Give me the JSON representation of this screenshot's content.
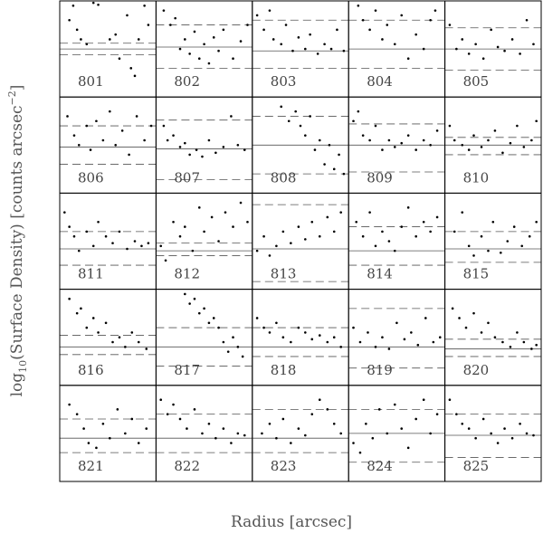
{
  "figure": {
    "xlabel": "Radius [arcsec]",
    "ylabel": [
      "log",
      "10",
      "(Surface Density) [counts arcsec",
      "−2",
      "]"
    ]
  },
  "chart_data": [
    {
      "type": "scatter",
      "title": "801",
      "x": [
        10,
        14,
        18,
        22,
        28,
        35,
        40,
        52,
        58,
        62,
        70,
        74,
        78,
        82,
        88,
        92
      ],
      "y": [
        80,
        95,
        70,
        60,
        55,
        98,
        96,
        60,
        65,
        40,
        85,
        30,
        22,
        60,
        95,
        75
      ],
      "xlim": [
        0,
        100
      ],
      "ylim": [
        0,
        100
      ],
      "median": 50,
      "bounds": [
        44,
        56
      ]
    },
    {
      "type": "scatter",
      "title": "802",
      "x": [
        8,
        15,
        20,
        25,
        30,
        35,
        40,
        45,
        50,
        55,
        60,
        65,
        70,
        80,
        88,
        95
      ],
      "y": [
        90,
        75,
        82,
        50,
        60,
        45,
        68,
        40,
        55,
        35,
        62,
        48,
        70,
        40,
        58,
        75
      ],
      "xlim": [
        0,
        100
      ],
      "ylim": [
        0,
        100
      ],
      "median": 52,
      "bounds": [
        30,
        75
      ]
    },
    {
      "type": "scatter",
      "title": "803",
      "x": [
        5,
        12,
        18,
        22,
        30,
        35,
        42,
        48,
        55,
        60,
        68,
        75,
        82,
        88,
        95
      ],
      "y": [
        85,
        70,
        90,
        60,
        55,
        75,
        48,
        62,
        50,
        65,
        45,
        55,
        50,
        70,
        48
      ],
      "xlim": [
        0,
        100
      ],
      "ylim": [
        0,
        100
      ],
      "median": 48,
      "bounds": [
        30,
        80
      ]
    },
    {
      "type": "scatter",
      "title": "804",
      "x": [
        10,
        15,
        22,
        28,
        35,
        40,
        48,
        55,
        62,
        70,
        78,
        85,
        90
      ],
      "y": [
        95,
        80,
        70,
        90,
        60,
        75,
        55,
        85,
        40,
        65,
        50,
        80,
        90
      ],
      "xlim": [
        0,
        100
      ],
      "ylim": [
        0,
        100
      ],
      "median": 50,
      "bounds": [
        30,
        80
      ]
    },
    {
      "type": "scatter",
      "title": "805",
      "x": [
        5,
        12,
        18,
        25,
        32,
        40,
        48,
        55,
        62,
        70,
        78,
        85,
        92
      ],
      "y": [
        75,
        50,
        60,
        45,
        55,
        40,
        70,
        52,
        48,
        60,
        45,
        80,
        55
      ],
      "xlim": [
        0,
        100
      ],
      "ylim": [
        0,
        100
      ],
      "median": 50,
      "bounds": [
        28,
        72
      ]
    },
    {
      "type": "scatter",
      "title": "806",
      "x": [
        8,
        15,
        20,
        28,
        32,
        38,
        45,
        52,
        58,
        65,
        72,
        80,
        88,
        95
      ],
      "y": [
        80,
        60,
        50,
        70,
        45,
        75,
        55,
        85,
        50,
        65,
        40,
        80,
        55,
        70
      ],
      "xlim": [
        0,
        100
      ],
      "ylim": [
        0,
        100
      ],
      "median": 48,
      "bounds": [
        30,
        70
      ]
    },
    {
      "type": "scatter",
      "title": "807",
      "x": [
        8,
        12,
        18,
        25,
        30,
        35,
        42,
        48,
        55,
        62,
        70,
        78,
        85,
        92
      ],
      "y": [
        70,
        55,
        60,
        48,
        52,
        40,
        45,
        38,
        55,
        42,
        48,
        80,
        50,
        45
      ],
      "xlim": [
        0,
        100
      ],
      "ylim": [
        0,
        100
      ],
      "median": 46,
      "bounds": [
        14,
        76
      ]
    },
    {
      "type": "scatter",
      "title": "808",
      "x": [
        30,
        38,
        45,
        50,
        55,
        60,
        65,
        70,
        75,
        80,
        85,
        90,
        95
      ],
      "y": [
        90,
        75,
        85,
        70,
        60,
        80,
        45,
        55,
        30,
        50,
        25,
        40,
        20
      ],
      "xlim": [
        0,
        100
      ],
      "ylim": [
        0,
        100
      ],
      "median": 50,
      "bounds": [
        20,
        80
      ]
    },
    {
      "type": "scatter",
      "title": "809",
      "x": [
        5,
        10,
        15,
        22,
        28,
        35,
        42,
        48,
        55,
        62,
        70,
        78,
        85,
        92
      ],
      "y": [
        75,
        85,
        60,
        55,
        70,
        45,
        55,
        48,
        52,
        60,
        45,
        55,
        50,
        65
      ],
      "xlim": [
        0,
        100
      ],
      "ylim": [
        0,
        100
      ],
      "median": 50,
      "bounds": [
        22,
        72
      ]
    },
    {
      "type": "scatter",
      "title": "810",
      "x": [
        5,
        10,
        18,
        25,
        30,
        38,
        45,
        52,
        60,
        68,
        75,
        82,
        90,
        95
      ],
      "y": [
        70,
        55,
        50,
        45,
        60,
        48,
        55,
        65,
        42,
        52,
        70,
        48,
        55,
        75
      ],
      "xlim": [
        0,
        100
      ],
      "ylim": [
        0,
        100
      ],
      "median": 50,
      "bounds": [
        40,
        58
      ]
    },
    {
      "type": "scatter",
      "title": "811",
      "x": [
        5,
        10,
        15,
        20,
        28,
        35,
        40,
        48,
        55,
        62,
        70,
        78,
        85,
        92
      ],
      "y": [
        80,
        65,
        55,
        40,
        60,
        45,
        70,
        55,
        48,
        60,
        42,
        50,
        45,
        48
      ],
      "xlim": [
        0,
        100
      ],
      "ylim": [
        0,
        100
      ],
      "median": 42,
      "bounds": [
        25,
        60
      ]
    },
    {
      "type": "scatter",
      "title": "812",
      "x": [
        5,
        10,
        18,
        25,
        30,
        38,
        45,
        50,
        58,
        65,
        72,
        80,
        88,
        95
      ],
      "y": [
        45,
        30,
        70,
        55,
        65,
        40,
        85,
        60,
        75,
        50,
        80,
        65,
        90,
        70
      ],
      "xlim": [
        0,
        100
      ],
      "ylim": [
        0,
        100
      ],
      "median": 40,
      "bounds": [
        35,
        48
      ]
    },
    {
      "type": "scatter",
      "title": "813",
      "x": [
        5,
        12,
        18,
        25,
        32,
        40,
        48,
        55,
        62,
        70,
        78,
        85,
        92
      ],
      "y": [
        40,
        55,
        35,
        45,
        60,
        48,
        65,
        52,
        70,
        55,
        75,
        60,
        80
      ],
      "xlim": [
        0,
        100
      ],
      "ylim": [
        0,
        100
      ],
      "median": 42,
      "bounds": [
        8,
        88
      ]
    },
    {
      "type": "scatter",
      "title": "814",
      "x": [
        8,
        15,
        22,
        28,
        35,
        42,
        48,
        55,
        62,
        70,
        78,
        85,
        92
      ],
      "y": [
        70,
        55,
        80,
        45,
        60,
        50,
        40,
        65,
        85,
        55,
        70,
        60,
        75
      ],
      "xlim": [
        0,
        100
      ],
      "ylim": [
        0,
        100
      ],
      "median": 40,
      "bounds": [
        25,
        65
      ]
    },
    {
      "type": "scatter",
      "title": "815",
      "x": [
        10,
        18,
        25,
        30,
        38,
        45,
        50,
        58,
        65,
        72,
        80,
        88,
        95
      ],
      "y": [
        60,
        80,
        45,
        35,
        55,
        40,
        70,
        38,
        50,
        65,
        45,
        55,
        70
      ],
      "xlim": [
        0,
        100
      ],
      "ylim": [
        0,
        100
      ],
      "median": 42,
      "bounds": [
        28,
        60
      ]
    },
    {
      "type": "scatter",
      "title": "816",
      "x": [
        10,
        18,
        22,
        28,
        35,
        40,
        48,
        55,
        62,
        68,
        75,
        82,
        90
      ],
      "y": [
        90,
        75,
        80,
        60,
        70,
        55,
        65,
        45,
        50,
        40,
        55,
        45,
        38
      ],
      "xlim": [
        0,
        100
      ],
      "ylim": [
        0,
        100
      ],
      "median": 40,
      "bounds": [
        32,
        52
      ]
    },
    {
      "type": "scatter",
      "title": "817",
      "x": [
        30,
        35,
        40,
        45,
        50,
        55,
        60,
        65,
        70,
        75,
        80,
        85,
        90
      ],
      "y": [
        95,
        85,
        90,
        75,
        80,
        65,
        70,
        60,
        45,
        35,
        50,
        40,
        30
      ],
      "xlim": [
        0,
        100
      ],
      "ylim": [
        0,
        100
      ],
      "median": 40,
      "bounds": [
        20,
        60
      ]
    },
    {
      "type": "scatter",
      "title": "818",
      "x": [
        5,
        12,
        18,
        25,
        32,
        40,
        48,
        55,
        62,
        70,
        78,
        85,
        92
      ],
      "y": [
        70,
        60,
        55,
        65,
        50,
        45,
        60,
        55,
        48,
        52,
        45,
        50,
        40
      ],
      "xlim": [
        0,
        100
      ],
      "ylim": [
        0,
        100
      ],
      "median": 40,
      "bounds": [
        30,
        60
      ]
    },
    {
      "type": "scatter",
      "title": "819",
      "x": [
        5,
        12,
        20,
        28,
        35,
        42,
        50,
        58,
        65,
        72,
        80,
        88,
        95
      ],
      "y": [
        60,
        45,
        55,
        40,
        50,
        38,
        65,
        48,
        55,
        42,
        70,
        45,
        50
      ],
      "xlim": [
        0,
        100
      ],
      "ylim": [
        0,
        100
      ],
      "median": 40,
      "bounds": [
        18,
        80
      ]
    },
    {
      "type": "scatter",
      "title": "820",
      "x": [
        8,
        15,
        22,
        30,
        38,
        45,
        52,
        60,
        68,
        75,
        82,
        90,
        95
      ],
      "y": [
        80,
        70,
        60,
        75,
        55,
        65,
        50,
        45,
        40,
        55,
        45,
        38,
        42
      ],
      "xlim": [
        0,
        100
      ],
      "ylim": [
        0,
        100
      ],
      "median": 38,
      "bounds": [
        30,
        48
      ]
    },
    {
      "type": "scatter",
      "title": "821",
      "x": [
        10,
        18,
        25,
        30,
        38,
        45,
        52,
        60,
        68,
        75,
        82,
        90
      ],
      "y": [
        80,
        70,
        55,
        40,
        35,
        60,
        45,
        75,
        50,
        65,
        40,
        55
      ],
      "xlim": [
        0,
        100
      ],
      "ylim": [
        0,
        100
      ],
      "median": 45,
      "bounds": [
        30,
        65
      ]
    },
    {
      "type": "scatter",
      "title": "822",
      "x": [
        5,
        12,
        18,
        25,
        32,
        40,
        48,
        55,
        62,
        70,
        78,
        85,
        92
      ],
      "y": [
        85,
        70,
        80,
        65,
        55,
        75,
        50,
        60,
        45,
        55,
        40,
        50,
        48
      ],
      "xlim": [
        0,
        100
      ],
      "ylim": [
        0,
        100
      ],
      "median": 45,
      "bounds": [
        30,
        70
      ]
    },
    {
      "type": "scatter",
      "title": "823",
      "x": [
        10,
        18,
        25,
        32,
        40,
        48,
        55,
        62,
        70,
        78,
        85,
        92
      ],
      "y": [
        50,
        60,
        45,
        65,
        40,
        55,
        48,
        70,
        85,
        75,
        60,
        50
      ],
      "xlim": [
        0,
        100
      ],
      "ylim": [
        0,
        100
      ],
      "median": 45,
      "bounds": [
        30,
        75
      ]
    },
    {
      "type": "scatter",
      "title": "824",
      "x": [
        5,
        12,
        18,
        25,
        32,
        40,
        48,
        55,
        62,
        70,
        78,
        85,
        92
      ],
      "y": [
        40,
        30,
        60,
        45,
        75,
        50,
        80,
        55,
        35,
        65,
        85,
        50,
        70
      ],
      "xlim": [
        0,
        100
      ],
      "ylim": [
        0,
        100
      ],
      "median": 50,
      "bounds": [
        20,
        75
      ]
    },
    {
      "type": "scatter",
      "title": "825",
      "x": [
        5,
        12,
        18,
        25,
        32,
        40,
        48,
        55,
        62,
        70,
        78,
        85,
        92
      ],
      "y": [
        85,
        70,
        60,
        55,
        45,
        65,
        50,
        40,
        55,
        45,
        60,
        50,
        48
      ],
      "xlim": [
        0,
        100
      ],
      "ylim": [
        0,
        100
      ],
      "median": 48,
      "bounds": [
        25,
        70
      ]
    }
  ]
}
